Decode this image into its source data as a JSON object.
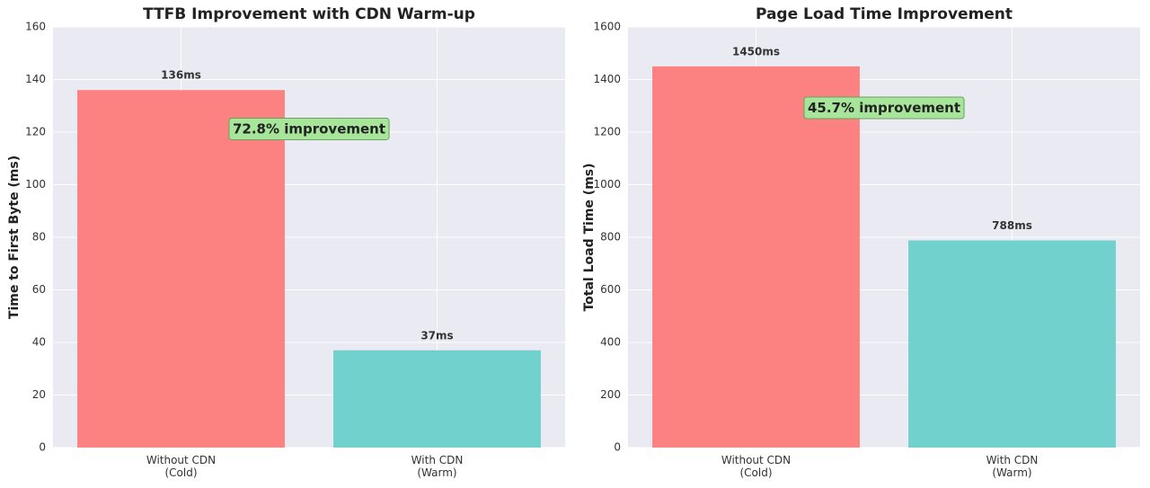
{
  "chart_data": [
    {
      "type": "bar",
      "title": "TTFB Improvement with CDN Warm-up",
      "y_label": "Time to First Byte (ms)",
      "categories": [
        "Without CDN\n(Cold)",
        "With CDN\n(Warm)"
      ],
      "values": [
        136,
        37
      ],
      "value_labels": [
        "136ms",
        "37ms"
      ],
      "colors": [
        "#fc8181",
        "#71d1cc"
      ],
      "annotation": "72.8% improvement",
      "ylim": [
        0,
        160
      ],
      "yticks": [
        0,
        20,
        40,
        60,
        80,
        100,
        120,
        140,
        160
      ],
      "grid": true
    },
    {
      "type": "bar",
      "title": "Page Load Time Improvement",
      "y_label": "Total Load Time (ms)",
      "categories": [
        "Without CDN\n(Cold)",
        "With CDN\n(Warm)"
      ],
      "values": [
        1450,
        788
      ],
      "value_labels": [
        "1450ms",
        "788ms"
      ],
      "colors": [
        "#fc8181",
        "#71d1cc"
      ],
      "annotation": "45.7% improvement",
      "ylim": [
        0,
        1600
      ],
      "yticks": [
        0,
        200,
        400,
        600,
        800,
        1000,
        1200,
        1400,
        1600
      ],
      "grid": true
    }
  ]
}
